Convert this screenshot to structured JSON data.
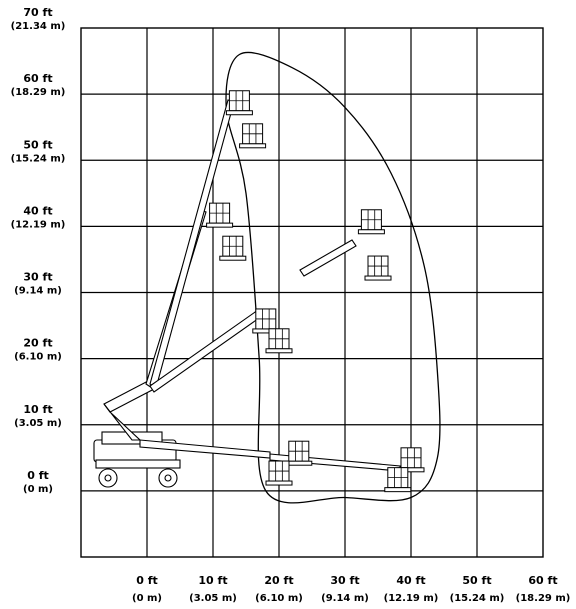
{
  "chart_data": {
    "type": "diagram",
    "title": "",
    "units": "ft (m)",
    "x_axis": {
      "ticks": [
        {
          "value": 0,
          "ft": "0 ft",
          "m": "(0 m)"
        },
        {
          "value": 10,
          "ft": "10 ft",
          "m": "(3.05 m)"
        },
        {
          "value": 20,
          "ft": "20 ft",
          "m": "(6.10 m)"
        },
        {
          "value": 30,
          "ft": "30 ft",
          "m": "(9.14 m)"
        },
        {
          "value": 40,
          "ft": "40 ft",
          "m": "(12.19 m)"
        },
        {
          "value": 50,
          "ft": "50 ft",
          "m": "(15.24 m)"
        },
        {
          "value": 60,
          "ft": "60 ft",
          "m": "(18.29 m)"
        }
      ],
      "range": [
        -10,
        60
      ]
    },
    "y_axis": {
      "ticks": [
        {
          "value": 70,
          "ft": "70 ft",
          "m": "(21.34 m)"
        },
        {
          "value": 60,
          "ft": "60 ft",
          "m": "(18.29 m)"
        },
        {
          "value": 50,
          "ft": "50 ft",
          "m": "(15.24 m)"
        },
        {
          "value": 40,
          "ft": "40 ft",
          "m": "(12.19 m)"
        },
        {
          "value": 30,
          "ft": "30 ft",
          "m": "(9.14 m)"
        },
        {
          "value": 20,
          "ft": "20 ft",
          "m": "(6.10 m)"
        },
        {
          "value": 10,
          "ft": "10 ft",
          "m": "(3.05 m)"
        },
        {
          "value": 0,
          "ft": "0 ft",
          "m": "(0 m)"
        }
      ],
      "range": [
        -10,
        70
      ]
    },
    "grid": true,
    "working_envelope_ft": [
      [
        14,
        66
      ],
      [
        22,
        64
      ],
      [
        30,
        58
      ],
      [
        37,
        48
      ],
      [
        42,
        34
      ],
      [
        44,
        18
      ],
      [
        44,
        5
      ],
      [
        40,
        -1
      ],
      [
        30,
        -1
      ],
      [
        18,
        0
      ],
      [
        17,
        20
      ],
      [
        15,
        45
      ],
      [
        12,
        58
      ]
    ],
    "platform_positions_ft": [
      [
        14,
        59
      ],
      [
        16,
        54
      ],
      [
        11,
        42
      ],
      [
        13,
        37
      ],
      [
        18,
        26
      ],
      [
        20,
        23
      ],
      [
        34,
        41
      ],
      [
        35,
        34
      ],
      [
        23,
        6
      ],
      [
        20,
        3
      ],
      [
        40,
        5
      ],
      [
        38,
        2
      ]
    ]
  }
}
